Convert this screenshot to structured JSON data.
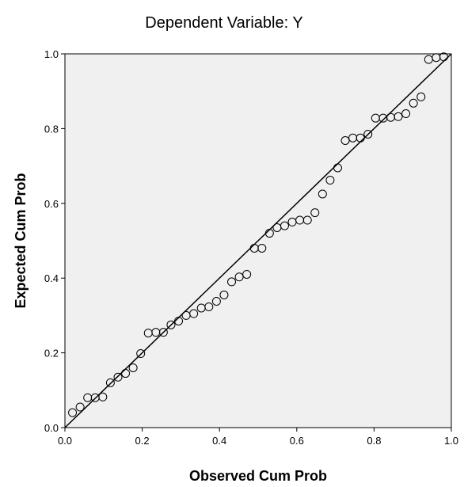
{
  "chart_data": {
    "type": "scatter",
    "title": "Dependent Variable: Y",
    "xlabel": "Observed Cum Prob",
    "ylabel": "Expected Cum Prob",
    "xlim": [
      0,
      1
    ],
    "ylim": [
      0,
      1
    ],
    "x_ticks": [
      "0.0",
      "0.2",
      "0.4",
      "0.6",
      "0.8",
      "1.0"
    ],
    "y_ticks": [
      "0.0",
      "0.2",
      "0.4",
      "0.6",
      "0.8",
      "1.0"
    ],
    "grid": false,
    "reference_line": {
      "x": [
        0,
        1
      ],
      "y": [
        0,
        1
      ]
    },
    "points": {
      "x": [
        0.0196,
        0.0392,
        0.0588,
        0.0784,
        0.098,
        0.1176,
        0.1373,
        0.1569,
        0.1765,
        0.1961,
        0.2157,
        0.2353,
        0.2549,
        0.2745,
        0.2941,
        0.3137,
        0.3333,
        0.3529,
        0.3725,
        0.3922,
        0.4118,
        0.4314,
        0.451,
        0.4706,
        0.4902,
        0.5098,
        0.5294,
        0.549,
        0.5686,
        0.5882,
        0.6078,
        0.6275,
        0.6471,
        0.6667,
        0.6863,
        0.7059,
        0.7255,
        0.7451,
        0.7647,
        0.7843,
        0.8039,
        0.8235,
        0.8431,
        0.8627,
        0.8824,
        0.902,
        0.9216,
        0.9412,
        0.9608,
        0.9804
      ],
      "y": [
        0.04,
        0.055,
        0.08,
        0.08,
        0.082,
        0.12,
        0.135,
        0.145,
        0.16,
        0.198,
        0.253,
        0.255,
        0.255,
        0.275,
        0.285,
        0.3,
        0.305,
        0.32,
        0.323,
        0.338,
        0.355,
        0.39,
        0.403,
        0.41,
        0.48,
        0.48,
        0.52,
        0.535,
        0.54,
        0.55,
        0.555,
        0.555,
        0.575,
        0.625,
        0.662,
        0.695,
        0.768,
        0.775,
        0.775,
        0.785,
        0.828,
        0.828,
        0.83,
        0.832,
        0.84,
        0.868,
        0.885,
        0.985,
        0.99,
        0.992
      ]
    },
    "colors": {
      "plot_background": "#f0f0f0",
      "marker_stroke": "#000000",
      "line": "#000000"
    }
  }
}
